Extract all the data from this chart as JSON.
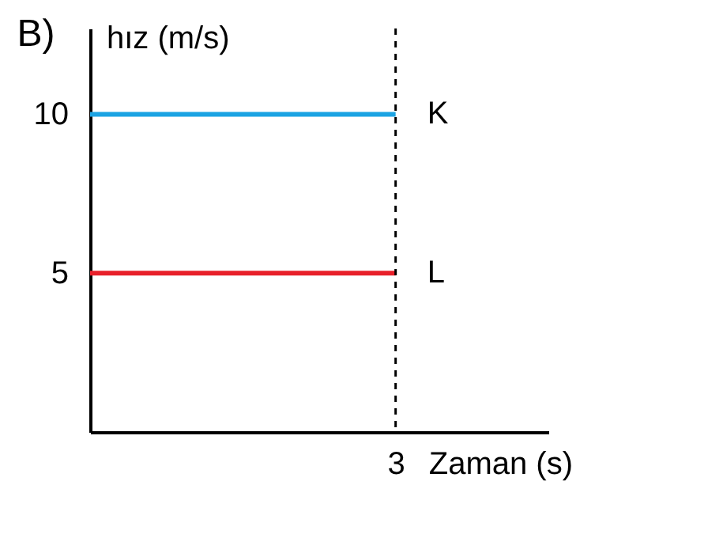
{
  "chart_data": {
    "type": "line",
    "title": "B)",
    "xlabel": "Zaman (s)",
    "ylabel": "hız (m/s)",
    "categories": [
      null,
      null,
      "3",
      null
    ],
    "series": [
      {
        "name": "K",
        "color": "#1ba3e3",
        "values": [
          10,
          10,
          10,
          null
        ]
      },
      {
        "name": "L",
        "color": "#e8202a",
        "values": [
          5,
          5,
          5,
          null
        ]
      }
    ],
    "ylim": [
      0,
      12.7
    ],
    "yticks": [
      5,
      10
    ],
    "grid": false,
    "legend": false,
    "marker": "none",
    "line_style": "solid",
    "ref_lines": [
      {
        "axis": "x",
        "value": "3",
        "label": null,
        "color": "#000000",
        "line_style": "dashed"
      }
    ]
  }
}
